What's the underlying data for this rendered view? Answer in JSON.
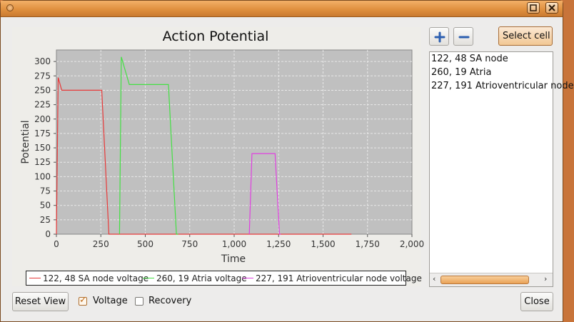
{
  "window": {
    "title": ""
  },
  "chart_data": {
    "type": "line",
    "title": "Action Potential",
    "xlabel": "Time",
    "ylabel": "Potential",
    "xlim": [
      0,
      2000
    ],
    "ylim": [
      0,
      320
    ],
    "x_ticks": [
      0,
      250,
      500,
      750,
      1000,
      1250,
      1500,
      1750,
      2000
    ],
    "x_tick_labels": [
      "0",
      "250",
      "500",
      "750",
      "1,000",
      "1,250",
      "1,500",
      "1,750",
      "2,000"
    ],
    "y_ticks": [
      0,
      25,
      50,
      75,
      100,
      125,
      150,
      175,
      200,
      225,
      250,
      275,
      300
    ],
    "y_tick_labels": [
      "0",
      "25",
      "50",
      "75",
      "100",
      "125",
      "150",
      "175",
      "200",
      "225",
      "250",
      "275",
      "300"
    ],
    "grid": true,
    "legend_position": "bottom",
    "series": [
      {
        "name": "122, 48 SA node voltage",
        "color": "#e83a3a",
        "x": [
          0,
          10,
          30,
          255,
          295,
          305,
          1660
        ],
        "y": [
          0,
          272,
          250,
          250,
          0,
          0,
          0
        ]
      },
      {
        "name": "260, 19 Atria voltage",
        "color": "#44e044",
        "x": [
          355,
          365,
          410,
          630,
          675,
          685
        ],
        "y": [
          0,
          308,
          260,
          260,
          0,
          0
        ]
      },
      {
        "name": "227, 191 Atrioventricular node voltage",
        "color": "#e040e0",
        "x": [
          1085,
          1100,
          1230,
          1255,
          1262
        ],
        "y": [
          0,
          140,
          140,
          0,
          0
        ]
      }
    ]
  },
  "toolbar": {
    "add_icon": "plus-icon",
    "remove_icon": "minus-icon",
    "select_cell_label": "Select cell"
  },
  "cell_list": {
    "items": [
      "122, 48 SA node",
      "260, 19 Atria",
      "227, 191 Atrioventricular node"
    ]
  },
  "controls": {
    "reset_view_label": "Reset View",
    "voltage_label": "Voltage",
    "voltage_checked": true,
    "recovery_label": "Recovery",
    "recovery_checked": false,
    "close_label": "Close"
  },
  "colors": {
    "plot_background": "#c0c0c0",
    "accent": "#e0903f"
  }
}
